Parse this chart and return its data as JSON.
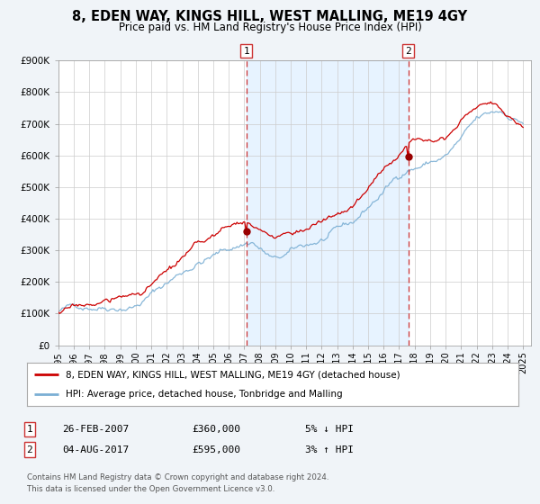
{
  "title": "8, EDEN WAY, KINGS HILL, WEST MALLING, ME19 4GY",
  "subtitle": "Price paid vs. HM Land Registry's House Price Index (HPI)",
  "ylim": [
    0,
    900000
  ],
  "yticks": [
    0,
    100000,
    200000,
    300000,
    400000,
    500000,
    600000,
    700000,
    800000,
    900000
  ],
  "ytick_labels": [
    "£0",
    "£100K",
    "£200K",
    "£300K",
    "£400K",
    "£500K",
    "£600K",
    "£700K",
    "£800K",
    "£900K"
  ],
  "xlim_start": 1995.0,
  "xlim_end": 2025.5,
  "xtick_years": [
    1995,
    1996,
    1997,
    1998,
    1999,
    2000,
    2001,
    2002,
    2003,
    2004,
    2005,
    2006,
    2007,
    2008,
    2009,
    2010,
    2011,
    2012,
    2013,
    2014,
    2015,
    2016,
    2017,
    2018,
    2019,
    2020,
    2021,
    2022,
    2023,
    2024,
    2025
  ],
  "sale1_x": 2007.13,
  "sale1_y": 360000,
  "sale1_label": "1",
  "sale2_x": 2017.59,
  "sale2_y": 595000,
  "sale2_label": "2",
  "vline1_x": 2007.13,
  "vline2_x": 2017.59,
  "property_color": "#cc0000",
  "hpi_color": "#7bafd4",
  "span_color": "#ddeeff",
  "background_color": "#f0f4f8",
  "plot_bg_color": "#ffffff",
  "legend_entry1": "8, EDEN WAY, KINGS HILL, WEST MALLING, ME19 4GY (detached house)",
  "legend_entry2": "HPI: Average price, detached house, Tonbridge and Malling",
  "table_row1": [
    "1",
    "26-FEB-2007",
    "£360,000",
    "5% ↓ HPI"
  ],
  "table_row2": [
    "2",
    "04-AUG-2017",
    "£595,000",
    "3% ↑ HPI"
  ],
  "footer1": "Contains HM Land Registry data © Crown copyright and database right 2024.",
  "footer2": "This data is licensed under the Open Government Licence v3.0."
}
